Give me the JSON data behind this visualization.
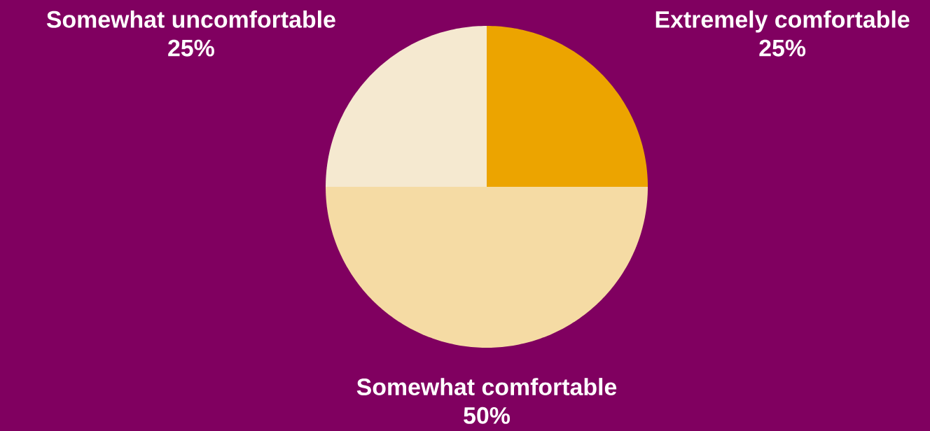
{
  "chart_data": {
    "type": "pie",
    "categories": [
      "Extremely comfortable",
      "Somewhat comfortable",
      "Somewhat uncomfortable"
    ],
    "values": [
      25,
      50,
      25
    ],
    "colors": [
      "#eca400",
      "#f5dba4",
      "#f5e9d0"
    ],
    "value_labels": [
      "25%",
      "50%",
      "25%"
    ]
  }
}
